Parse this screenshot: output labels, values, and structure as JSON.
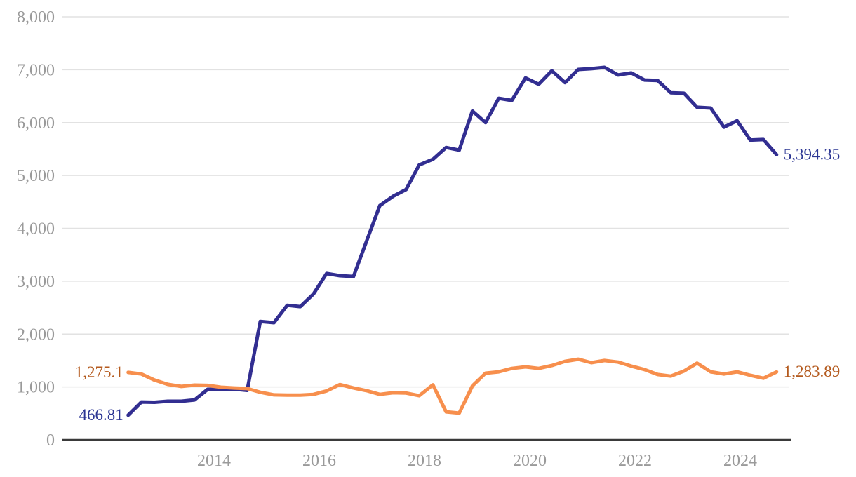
{
  "chart_data": {
    "type": "line",
    "title": "",
    "xlabel": "",
    "ylabel": "",
    "grid": true,
    "legend": false,
    "x_range": [
      2011.1,
      2025.0
    ],
    "ylim": [
      0,
      8000
    ],
    "x": [
      2012.37,
      2012.62,
      2012.87,
      2013.12,
      2013.38,
      2013.63,
      2013.88,
      2014.13,
      2014.38,
      2014.63,
      2014.88,
      2015.14,
      2015.39,
      2015.64,
      2015.89,
      2016.14,
      2016.39,
      2016.65,
      2016.9,
      2017.15,
      2017.4,
      2017.65,
      2017.9,
      2018.16,
      2018.41,
      2018.66,
      2018.91,
      2019.16,
      2019.41,
      2019.66,
      2019.92,
      2020.17,
      2020.42,
      2020.67,
      2020.92,
      2021.17,
      2021.42,
      2021.68,
      2021.93,
      2022.18,
      2022.43,
      2022.68,
      2022.93,
      2023.18,
      2023.44,
      2023.69,
      2023.94,
      2024.19,
      2024.44,
      2024.69
    ],
    "series": [
      {
        "name": "blue-series",
        "color": "#322e91",
        "label_color": "#2c3694",
        "start_label": "466.81",
        "end_label": "5,394.35",
        "values": [
          466.81,
          715,
          710,
          730,
          730,
          755,
          955,
          950,
          960,
          935,
          2240,
          2215,
          2545,
          2520,
          2760,
          3145,
          3105,
          3090,
          3760,
          4430,
          4605,
          4735,
          5200,
          5305,
          5530,
          5480,
          6220,
          6000,
          6460,
          6420,
          6845,
          6725,
          6980,
          6755,
          7005,
          7020,
          7045,
          6900,
          6940,
          6805,
          6795,
          6565,
          6555,
          6290,
          6275,
          5915,
          6035,
          5670,
          5680,
          5394.35
        ]
      },
      {
        "name": "orange-series",
        "color": "#f78f4d",
        "label_color": "#b45a1e",
        "start_label": "1,275.1",
        "end_label": "1,283.89",
        "values": [
          1275.1,
          1245,
          1130,
          1050,
          1010,
          1035,
          1030,
          995,
          980,
          970,
          900,
          850,
          845,
          845,
          860,
          925,
          1045,
          980,
          930,
          860,
          890,
          885,
          835,
          1040,
          530,
          505,
          1020,
          1260,
          1285,
          1350,
          1380,
          1350,
          1405,
          1485,
          1525,
          1460,
          1500,
          1470,
          1395,
          1330,
          1235,
          1205,
          1300,
          1450,
          1285,
          1245,
          1285,
          1220,
          1165,
          1283.89
        ]
      }
    ],
    "x_axis": {
      "ticks": [
        {
          "value": 2014,
          "label": "2014"
        },
        {
          "value": 2016,
          "label": "2016"
        },
        {
          "value": 2018,
          "label": "2018"
        },
        {
          "value": 2020,
          "label": "2020"
        },
        {
          "value": 2022,
          "label": "2022"
        },
        {
          "value": 2024,
          "label": "2024"
        }
      ]
    },
    "y_axis": {
      "ticks": [
        {
          "value": 0,
          "label": "0"
        },
        {
          "value": 1000,
          "label": "1,000"
        },
        {
          "value": 2000,
          "label": "2,000"
        },
        {
          "value": 3000,
          "label": "3,000"
        },
        {
          "value": 4000,
          "label": "4,000"
        },
        {
          "value": 5000,
          "label": "5,000"
        },
        {
          "value": 6000,
          "label": "6,000"
        },
        {
          "value": 7000,
          "label": "7,000"
        },
        {
          "value": 8000,
          "label": "8,000"
        }
      ]
    }
  },
  "colors": {
    "background": "#ffffff",
    "grid": "#e2e2e2",
    "axis": "#3a3a3a",
    "tick_text": "#9a9a9a"
  }
}
